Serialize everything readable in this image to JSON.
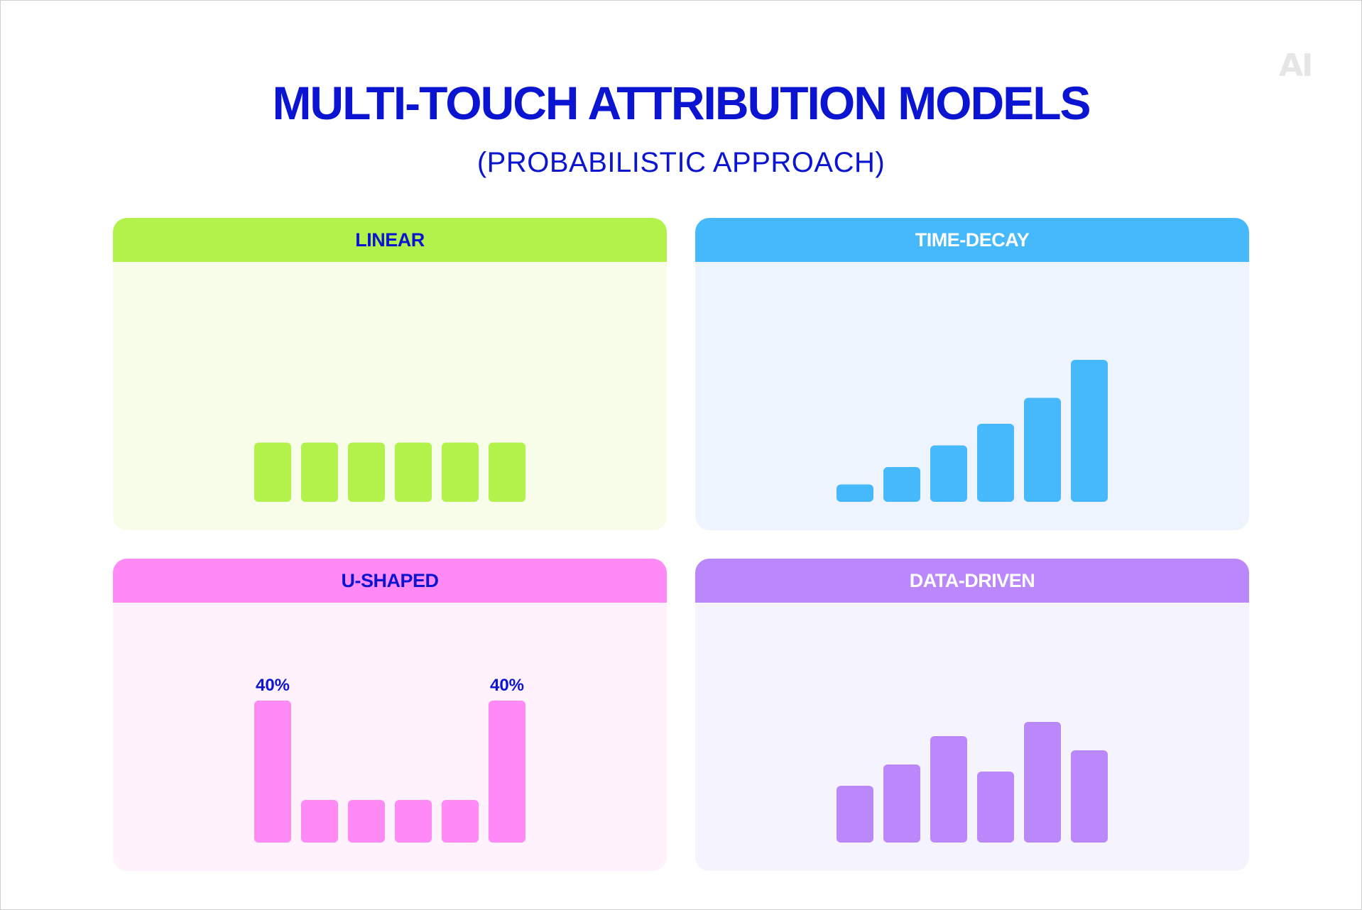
{
  "logo": "AI",
  "title": "MULTI-TOUCH ATTRIBUTION MODELS",
  "subtitle": "(PROBABILISTIC APPROACH)",
  "colors": {
    "linear": "#b2f24a",
    "linear_bg": "#f7fde9",
    "time_decay": "#45b9fb",
    "time_decay_bg": "#eef4fd",
    "u_shaped": "#ff8af5",
    "u_shaped_bg": "#fff2fd",
    "data_driven": "#bb88fb",
    "data_driven_bg": "#f5f3fd",
    "heading_text": "#0b14d1",
    "label_text": "#0b14d1"
  },
  "chart_data": [
    {
      "type": "bar",
      "title": "LINEAR",
      "categories": [
        "",
        "",
        "",
        "",
        "",
        ""
      ],
      "values": [
        16.7,
        16.7,
        16.7,
        16.7,
        16.7,
        16.7
      ],
      "data_labels": [
        "",
        "",
        "",
        "",
        "",
        ""
      ],
      "ylim": [
        0,
        40
      ],
      "grid": false,
      "legend": "none"
    },
    {
      "type": "bar",
      "title": "TIME-DECAY",
      "categories": [
        "",
        "",
        "",
        "",
        "",
        ""
      ],
      "values": [
        4.9,
        9.8,
        15.9,
        22.0,
        29.3,
        40.0
      ],
      "data_labels": [
        "",
        "",
        "",
        "",
        "",
        ""
      ],
      "ylim": [
        0,
        40
      ],
      "grid": false,
      "legend": "none"
    },
    {
      "type": "bar",
      "title": "U-SHAPED",
      "categories": [
        "",
        "",
        "",
        "",
        "",
        ""
      ],
      "values": [
        40,
        12,
        12,
        12,
        12,
        40
      ],
      "data_labels": [
        "40%",
        "",
        "",
        "",
        "",
        "40%"
      ],
      "ylim": [
        0,
        40
      ],
      "grid": false,
      "legend": "none"
    },
    {
      "type": "bar",
      "title": "DATA-DRIVEN",
      "categories": [
        "",
        "",
        "",
        "",
        "",
        ""
      ],
      "values": [
        16,
        22,
        30,
        20,
        34,
        26
      ],
      "data_labels": [
        "",
        "",
        "",
        "",
        "",
        ""
      ],
      "ylim": [
        0,
        40
      ],
      "grid": false,
      "legend": "none"
    }
  ]
}
